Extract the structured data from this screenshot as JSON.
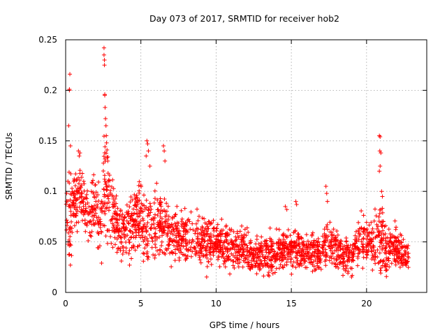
{
  "chart_data": {
    "type": "scatter",
    "title": "Day 073 of 2017, SRMTID for receiver hob2",
    "xlabel": "GPS time / hours",
    "ylabel": "SRMTID / TECUs",
    "xlim": [
      0,
      24
    ],
    "ylim": [
      0,
      0.25
    ],
    "x_ticks": [
      0,
      5,
      10,
      15,
      20
    ],
    "y_ticks": [
      0,
      0.05,
      0.1,
      0.15,
      0.2,
      0.25
    ],
    "x_tick_labels": [
      "0",
      "5",
      "10",
      "15",
      "20"
    ],
    "y_tick_labels": [
      "0",
      "0.05",
      "0.1",
      "0.15",
      "0.2",
      "0.25"
    ],
    "grid": true,
    "marker": "+",
    "color": "#ff0000",
    "series": [
      {
        "name": "SRMTID",
        "profile_x": [
          0,
          0.25,
          0.5,
          0.9,
          1.5,
          2.0,
          2.3,
          2.55,
          3.0,
          3.5,
          4.0,
          5.0,
          5.5,
          6.0,
          6.5,
          7.0,
          8.0,
          9.0,
          10.0,
          11.0,
          12.0,
          13.0,
          14.0,
          15.0,
          16.0,
          17.0,
          17.5,
          18.0,
          18.5,
          19.0,
          19.5,
          20.0,
          20.5,
          20.9,
          21.3,
          22.0,
          22.8
        ],
        "profile_mean": [
          0.078,
          0.07,
          0.085,
          0.1,
          0.075,
          0.085,
          0.06,
          0.11,
          0.085,
          0.065,
          0.06,
          0.075,
          0.065,
          0.065,
          0.07,
          0.055,
          0.055,
          0.05,
          0.05,
          0.045,
          0.04,
          0.035,
          0.04,
          0.045,
          0.04,
          0.042,
          0.05,
          0.045,
          0.035,
          0.035,
          0.05,
          0.055,
          0.045,
          0.06,
          0.04,
          0.045,
          0.035
        ],
        "profile_spread": [
          0.022,
          0.028,
          0.025,
          0.02,
          0.018,
          0.018,
          0.02,
          0.035,
          0.025,
          0.02,
          0.017,
          0.022,
          0.02,
          0.02,
          0.02,
          0.016,
          0.015,
          0.015,
          0.014,
          0.013,
          0.012,
          0.012,
          0.013,
          0.013,
          0.012,
          0.013,
          0.015,
          0.014,
          0.012,
          0.012,
          0.014,
          0.015,
          0.013,
          0.03,
          0.014,
          0.012,
          0.01
        ],
        "spikes": [
          [
            0.15,
            0.11
          ],
          [
            0.2,
            0.165
          ],
          [
            0.25,
            0.2
          ],
          [
            0.25,
            0.201
          ],
          [
            0.28,
            0.216
          ],
          [
            0.32,
            0.145
          ],
          [
            0.85,
            0.14
          ],
          [
            0.9,
            0.135
          ],
          [
            0.95,
            0.138
          ],
          [
            2.55,
            0.242
          ],
          [
            2.55,
            0.235
          ],
          [
            2.58,
            0.23
          ],
          [
            2.58,
            0.225
          ],
          [
            2.6,
            0.196
          ],
          [
            2.6,
            0.195
          ],
          [
            2.62,
            0.183
          ],
          [
            2.65,
            0.172
          ],
          [
            2.68,
            0.165
          ],
          [
            2.7,
            0.155
          ],
          [
            2.72,
            0.148
          ],
          [
            2.75,
            0.141
          ],
          [
            2.8,
            0.13
          ],
          [
            5.4,
            0.15
          ],
          [
            5.45,
            0.147
          ],
          [
            5.5,
            0.14
          ],
          [
            5.35,
            0.135
          ],
          [
            5.6,
            0.125
          ],
          [
            6.5,
            0.145
          ],
          [
            6.55,
            0.14
          ],
          [
            6.6,
            0.13
          ],
          [
            14.6,
            0.085
          ],
          [
            14.7,
            0.082
          ],
          [
            15.3,
            0.09
          ],
          [
            15.35,
            0.087
          ],
          [
            17.3,
            0.105
          ],
          [
            17.35,
            0.098
          ],
          [
            17.4,
            0.09
          ],
          [
            20.85,
            0.155
          ],
          [
            20.9,
            0.154
          ],
          [
            20.88,
            0.14
          ],
          [
            20.95,
            0.138
          ],
          [
            20.9,
            0.125
          ],
          [
            20.85,
            0.12
          ],
          [
            21.0,
            0.1
          ],
          [
            21.05,
            0.095
          ]
        ]
      }
    ]
  }
}
